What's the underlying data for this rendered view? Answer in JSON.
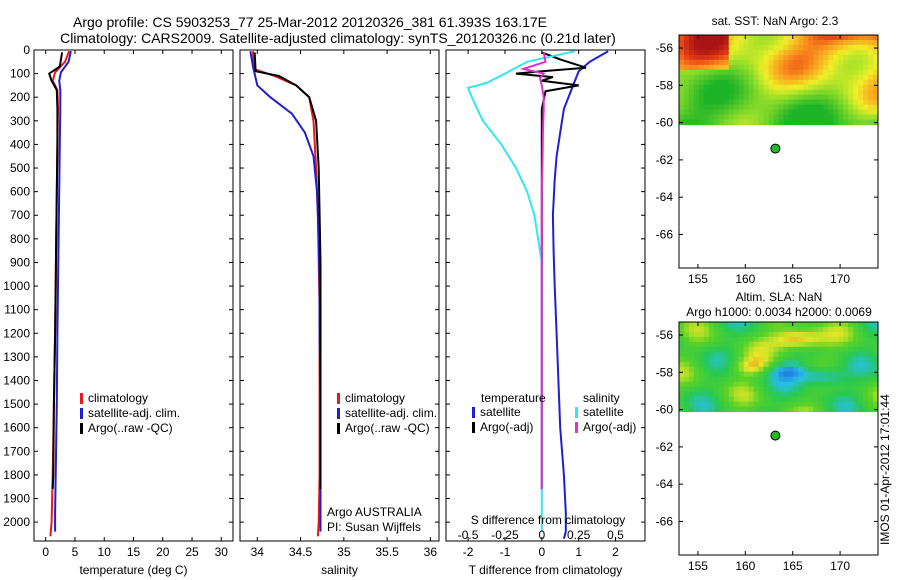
{
  "title_line1": "Argo profile: CS 5903253_77 25-Mar-2012 20120326_381 61.393S 163.17E",
  "title_line2": "Climatology: CARS2009. Satellite-adjusted climatology: synTS_20120326.nc (0.21d later)",
  "colors": {
    "climatology": "#e41a1c",
    "satellite": "#1f1fd0",
    "argo": "#000000",
    "cyan": "#33e6f0",
    "magenta": "#e030d0",
    "argo_dot": "#22bb22"
  },
  "depth_ticks": [
    "0",
    "100",
    "200",
    "300",
    "400",
    "500",
    "600",
    "700",
    "800",
    "900",
    "1000",
    "1100",
    "1200",
    "1300",
    "1400",
    "1500",
    "1600",
    "1700",
    "1800",
    "1900",
    "2000"
  ],
  "watermark": "IMOS 01-Apr-2012 17:01:44",
  "chart_data": [
    {
      "type": "line",
      "name": "temperature-panel",
      "xlabel": "temperature (deg C)",
      "ylabel": "",
      "xticks": [
        "0",
        "5",
        "10",
        "15",
        "20",
        "25",
        "30"
      ],
      "xlim": [
        -2,
        32
      ],
      "ylim": [
        2080,
        0
      ],
      "legend": [
        "climatology",
        "satellite-adj. clim.",
        "Argo(..raw -QC)"
      ],
      "series": [
        {
          "name": "climatology",
          "color": "#e41a1c",
          "x": [
            4.0,
            3.3,
            1.6,
            1.2,
            2.0,
            2.1,
            2.0,
            1.9,
            1.8,
            1.7,
            1.6,
            1.4,
            1.2,
            1.0,
            0.8
          ],
          "y": [
            5,
            50,
            95,
            130,
            170,
            250,
            400,
            600,
            800,
            1000,
            1200,
            1500,
            1800,
            2000,
            2060
          ]
        },
        {
          "name": "satellite-adj. clim.",
          "color": "#1f1fd0",
          "x": [
            4.3,
            3.9,
            2.6,
            2.3,
            2.5,
            2.5,
            2.4,
            2.3,
            2.2,
            2.1,
            2.0,
            1.9,
            1.7,
            1.6,
            1.6
          ],
          "y": [
            5,
            50,
            95,
            130,
            170,
            250,
            400,
            600,
            800,
            1000,
            1200,
            1500,
            1800,
            1960,
            2040
          ]
        },
        {
          "name": "Argo(..raw -QC)",
          "color": "#000000",
          "x": [
            2.8,
            2.4,
            0.6,
            1.0,
            1.9,
            2.0,
            2.0,
            1.9,
            1.8,
            1.7,
            1.6,
            1.4,
            1.3,
            1.2
          ],
          "y": [
            10,
            70,
            100,
            130,
            170,
            250,
            400,
            600,
            800,
            1000,
            1200,
            1500,
            1800,
            1860
          ]
        }
      ]
    },
    {
      "type": "line",
      "name": "salinity-panel",
      "xlabel": "salinity",
      "ylabel": "",
      "xticks": [
        "34",
        "34.5",
        "35",
        "35.5",
        "36"
      ],
      "xlim": [
        33.8,
        36.1
      ],
      "ylim": [
        2080,
        0
      ],
      "legend": [
        "climatology",
        "satellite-adj. clim.",
        "Argo(..raw -QC)"
      ],
      "annotations": [
        "Argo AUSTRALIA",
        "PI: Susan Wijffels"
      ],
      "series": [
        {
          "name": "climatology",
          "color": "#e41a1c",
          "x": [
            33.95,
            33.96,
            34.2,
            34.45,
            34.6,
            34.65,
            34.68,
            34.7,
            34.71,
            34.72,
            34.72,
            34.72,
            34.72,
            34.71,
            34.7
          ],
          "y": [
            5,
            80,
            110,
            150,
            200,
            300,
            500,
            700,
            900,
            1100,
            1300,
            1500,
            1800,
            2000,
            2060
          ]
        },
        {
          "name": "satellite-adj. clim.",
          "color": "#1f1fd0",
          "x": [
            33.92,
            33.95,
            34.0,
            34.15,
            34.4,
            34.55,
            34.65,
            34.69,
            34.71,
            34.72,
            34.72,
            34.73,
            34.73,
            34.73,
            34.73
          ],
          "y": [
            5,
            70,
            150,
            200,
            270,
            350,
            450,
            600,
            800,
            1000,
            1200,
            1500,
            1800,
            2000,
            2040
          ]
        },
        {
          "name": "Argo(..raw -QC)",
          "color": "#000000",
          "x": [
            33.97,
            33.98,
            34.25,
            34.45,
            34.6,
            34.68,
            34.71,
            34.72,
            34.73,
            34.73,
            34.73,
            34.73
          ],
          "y": [
            10,
            90,
            110,
            150,
            200,
            300,
            500,
            700,
            900,
            1200,
            1500,
            1860
          ]
        }
      ]
    },
    {
      "type": "line",
      "name": "difference-panel",
      "xlabel": "T difference from climatology",
      "xlabel_top": "S difference from climatology",
      "ylabel": "",
      "xticks": [
        "-2",
        "-1",
        "0",
        "1",
        "2"
      ],
      "xticks_s": [
        "-0.5",
        "-0.25",
        "0",
        "0.25",
        "0.5"
      ],
      "xlim": [
        -2.6,
        2.8
      ],
      "ylim": [
        2080,
        0
      ],
      "legend_left_title": "temperature",
      "legend_right_title": "salinity",
      "legend_left": [
        "satellite",
        "Argo(-adj)"
      ],
      "legend_right": [
        "satellite",
        "Argo(-adj)"
      ],
      "series": [
        {
          "name": "temperature satellite",
          "color": "#1f1fd0",
          "x": [
            1.8,
            1.3,
            1.0,
            0.85,
            0.6,
            0.5,
            0.4,
            0.35,
            0.3,
            0.32,
            0.35,
            0.4,
            0.45,
            0.5,
            0.6,
            0.65,
            0.65,
            0.6
          ],
          "y": [
            5,
            50,
            90,
            150,
            250,
            350,
            450,
            550,
            700,
            850,
            1000,
            1200,
            1400,
            1600,
            1800,
            1960,
            2040,
            2070
          ]
        },
        {
          "name": "temperature Argo(-adj)",
          "color": "#000000",
          "x": [
            0.0,
            0.5,
            1.2,
            0.0,
            -0.7,
            0.3,
            0.0,
            1.0,
            0.1,
            0.0,
            0.0,
            0.0,
            0.0,
            0.0,
            0.0
          ],
          "y": [
            10,
            40,
            75,
            90,
            100,
            115,
            130,
            150,
            175,
            250,
            400,
            700,
            1000,
            1500,
            1860
          ]
        },
        {
          "name": "salinity satellite",
          "color": "#33e6f0",
          "x": [
            0.9,
            -0.4,
            -1.0,
            -1.5,
            -2.0,
            -1.9,
            -1.6,
            -1.1,
            -0.7,
            -0.4,
            -0.2,
            -0.1,
            0.0,
            0.0,
            0.0,
            0.0,
            0.0,
            0.0
          ],
          "y": [
            5,
            50,
            100,
            140,
            160,
            200,
            300,
            400,
            500,
            600,
            700,
            800,
            900,
            1100,
            1400,
            1700,
            1950,
            2040
          ]
        },
        {
          "name": "salinity Argo(-adj)",
          "color": "#e030d0",
          "x": [
            0.05,
            0.1,
            -0.5,
            0.05,
            -0.05,
            0.0,
            0.05,
            0.05,
            0.03,
            0.02,
            0.0,
            0.0,
            0.0,
            0.0,
            0.0
          ],
          "y": [
            10,
            50,
            80,
            100,
            120,
            150,
            200,
            250,
            350,
            450,
            600,
            900,
            1200,
            1500,
            1860
          ]
        }
      ]
    },
    {
      "type": "heatmap",
      "name": "sst-map",
      "title": "sat. SST: NaN Argo: 2.3",
      "xticks": [
        "155",
        "160",
        "165",
        "170"
      ],
      "yticks": [
        "-56",
        "-58",
        "-60",
        "-62",
        "-64",
        "-66"
      ],
      "xlim": [
        153,
        174
      ],
      "ylim": [
        -67.8,
        -55.3
      ],
      "data_bottom_lat": -60.1,
      "argo_position": {
        "lon": 163.17,
        "lat": -61.393
      }
    },
    {
      "type": "heatmap",
      "name": "sla-map",
      "title_line1": "Altim. SLA: NaN",
      "title_line2": "Argo h1000: 0.0034 h2000: 0.0069",
      "xticks": [
        "155",
        "160",
        "165",
        "170"
      ],
      "yticks": [
        "-56",
        "-58",
        "-60",
        "-62",
        "-64",
        "-66"
      ],
      "xlim": [
        153,
        174
      ],
      "ylim": [
        -67.8,
        -55.3
      ],
      "data_bottom_lat": -60.1,
      "argo_position": {
        "lon": 163.17,
        "lat": -61.393
      }
    }
  ]
}
